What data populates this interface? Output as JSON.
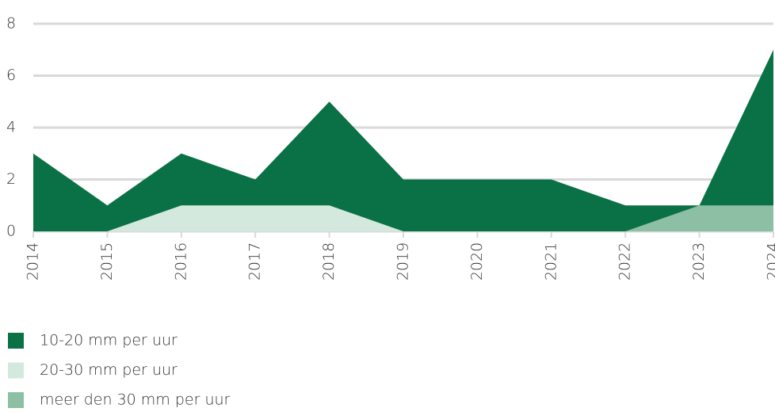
{
  "chart_data": {
    "type": "area",
    "categories": [
      "2014",
      "2015",
      "2016",
      "2017",
      "2018",
      "2019",
      "2020",
      "2021",
      "2022",
      "2023",
      "2024"
    ],
    "series": [
      {
        "name": "10-20 mm per uur",
        "color": "#0a7045",
        "values": [
          3,
          1,
          3,
          2,
          5,
          2,
          2,
          2,
          1,
          1,
          7
        ]
      },
      {
        "name": "20-30 mm per uur",
        "color": "#d4e9dd",
        "values": [
          0,
          0,
          1,
          1,
          1,
          0,
          0,
          0,
          0,
          0,
          0
        ]
      },
      {
        "name": "meer den 30 mm per uur",
        "color": "#8dbfa4",
        "values": [
          0,
          0,
          0,
          0,
          0,
          0,
          0,
          0,
          0,
          1,
          1
        ]
      }
    ],
    "ylim": [
      0,
      8
    ],
    "yticks": [
      0,
      2,
      4,
      6,
      8
    ],
    "grid": true
  }
}
